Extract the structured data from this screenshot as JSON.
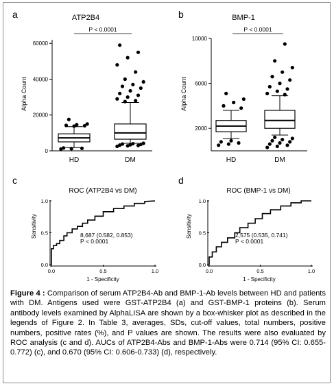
{
  "figure": {
    "caption_label": "Figure 4 :",
    "caption_text": "Comparison of serum ATP2B4-Ab and BMP-1-Ab levels between HD and patients with DM. Antigens used were GST-ATP2B4 (a) and GST-BMP-1 proteins (b). Serum antibody levels examined by AlphaLISA are shown by a box-whisker plot as described in the legends of Figure 2. In Table 3, averages, SDs, cut-off values, total numbers, positive numbers, positive rates (%), and P values are shown. The results were also evaluated by ROC analysis (c and d). AUCs of ATP2B4-Abs and BMP-1-Abs were 0.714 (95% CI: 0.655-0.772) (c), and 0.670 (95% CI: 0.606-0.733) (d), respectively."
  },
  "chart_data": [
    {
      "panel": "a",
      "type": "box",
      "title": "ATP2B4",
      "ylabel": "Alpha Count",
      "categories": [
        "HD",
        "DM"
      ],
      "ylim": [
        0,
        62000
      ],
      "yticks": [
        0,
        20000,
        40000,
        60000
      ],
      "significance": "P < 0.0001",
      "boxes": [
        {
          "name": "HD",
          "whisker_low": 1800,
          "q1": 5000,
          "median": 7200,
          "q3": 9500,
          "whisker_high": 13500,
          "outliers": [
            1000,
            1200,
            1400,
            1600,
            13800,
            14000,
            14200,
            14600,
            15000,
            17500
          ]
        },
        {
          "name": "DM",
          "whisker_low": 4200,
          "q1": 6500,
          "median": 10000,
          "q3": 15000,
          "whisker_high": 27000,
          "outliers": [
            2500,
            2800,
            3000,
            3200,
            3400,
            3600,
            3800,
            4000,
            4200,
            27500,
            28000,
            29000,
            30000,
            31000,
            32000,
            33500,
            35000,
            36000,
            37000,
            38500,
            40000,
            44000,
            48000,
            52000,
            55000,
            59000
          ]
        }
      ]
    },
    {
      "panel": "b",
      "type": "box",
      "title": "BMP-1",
      "ylabel": "Alpha Count",
      "categories": [
        "HD",
        "DM"
      ],
      "ylim": [
        0,
        10000
      ],
      "yticks": [
        2000,
        6000,
        10000
      ],
      "significance": "P < 0.0001",
      "boxes": [
        {
          "name": "HD",
          "whisker_low": 1100,
          "q1": 1700,
          "median": 2200,
          "q3": 2700,
          "whisker_high": 3600,
          "outliers": [
            500,
            600,
            700,
            800,
            900,
            3800,
            4000,
            4300,
            4600,
            5100
          ]
        },
        {
          "name": "DM",
          "whisker_low": 1400,
          "q1": 2000,
          "median": 2700,
          "q3": 3600,
          "whisker_high": 4900,
          "outliers": [
            300,
            400,
            500,
            600,
            700,
            800,
            900,
            1000,
            1100,
            1200,
            5000,
            5100,
            5300,
            5500,
            5700,
            6000,
            6300,
            6600,
            7000,
            7400,
            8000,
            9500
          ]
        }
      ]
    },
    {
      "panel": "c",
      "type": "line",
      "title": "ROC (ATP2B4 vs DM)",
      "xlabel": "1 - Specificity",
      "ylabel": "Sensitivity",
      "xticks": [
        0.0,
        0.5,
        1.0
      ],
      "yticks": [
        0.0,
        0.5,
        1.0
      ],
      "xlim": [
        0,
        1
      ],
      "ylim": [
        0,
        1
      ],
      "annotation": [
        "8,687 (0.582, 0.853)",
        "P < 0.0001"
      ],
      "x": [
        0,
        0,
        0.02,
        0.02,
        0.05,
        0.05,
        0.08,
        0.08,
        0.12,
        0.12,
        0.15,
        0.15,
        0.2,
        0.2,
        0.25,
        0.25,
        0.3,
        0.3,
        0.35,
        0.35,
        0.42,
        0.42,
        0.5,
        0.5,
        0.6,
        0.6,
        0.7,
        0.7,
        0.8,
        0.8,
        0.9,
        0.9,
        1.0
      ],
      "y": [
        0,
        0.25,
        0.25,
        0.3,
        0.3,
        0.33,
        0.33,
        0.38,
        0.38,
        0.45,
        0.45,
        0.5,
        0.5,
        0.56,
        0.56,
        0.6,
        0.6,
        0.65,
        0.65,
        0.7,
        0.7,
        0.76,
        0.76,
        0.83,
        0.83,
        0.88,
        0.88,
        0.92,
        0.92,
        0.96,
        0.96,
        0.99,
        1.0
      ]
    },
    {
      "panel": "d",
      "type": "line",
      "title": "ROC (BMP-1 vs DM)",
      "xlabel": "1 - Specificity",
      "ylabel": "Sensitivity",
      "xticks": [
        0.0,
        0.5,
        1.0
      ],
      "yticks": [
        0.0,
        0.5,
        1.0
      ],
      "xlim": [
        0,
        1
      ],
      "ylim": [
        0,
        1
      ],
      "annotation": [
        "2,575 (0.535, 0.741)",
        "P < 0.0001"
      ],
      "x": [
        0,
        0,
        0.03,
        0.03,
        0.07,
        0.07,
        0.12,
        0.12,
        0.18,
        0.18,
        0.25,
        0.25,
        0.3,
        0.3,
        0.38,
        0.38,
        0.45,
        0.45,
        0.52,
        0.52,
        0.6,
        0.6,
        0.7,
        0.7,
        0.8,
        0.8,
        0.9,
        0.9,
        1.0
      ],
      "y": [
        0,
        0.12,
        0.12,
        0.2,
        0.2,
        0.28,
        0.28,
        0.35,
        0.35,
        0.42,
        0.42,
        0.5,
        0.5,
        0.58,
        0.58,
        0.65,
        0.65,
        0.72,
        0.72,
        0.8,
        0.8,
        0.86,
        0.86,
        0.92,
        0.92,
        0.97,
        0.97,
        1.0,
        1.0
      ]
    }
  ]
}
